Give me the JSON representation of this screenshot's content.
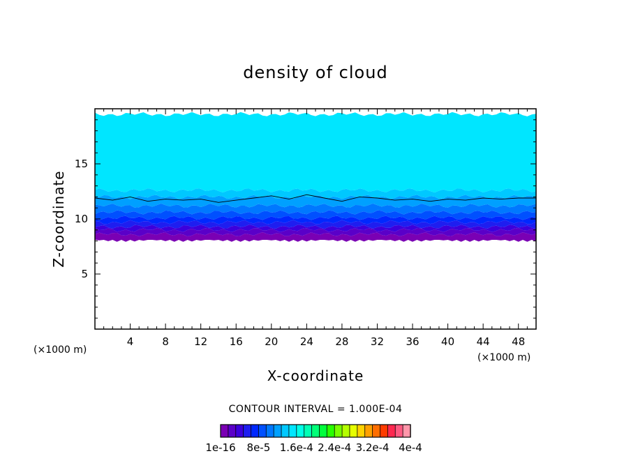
{
  "chart_data": {
    "type": "heatmap",
    "title": "density of cloud",
    "xlabel": "X-coordinate",
    "ylabel": "Z-coordinate",
    "x_unit_label": "(×1000 m)",
    "y_unit_label": "(×1000 m)",
    "xlim": [
      0,
      50
    ],
    "ylim": [
      0,
      20
    ],
    "x_ticks": [
      4,
      8,
      12,
      16,
      20,
      24,
      28,
      32,
      36,
      40,
      44,
      48
    ],
    "y_ticks": [
      5,
      10,
      15
    ],
    "contour_interval_text": "CONTOUR INTERVAL = 1.000E-04",
    "contour_interval": 0.0001,
    "colorbar_labels": [
      "1e-16",
      "8e-5",
      "1.6e-4",
      "2.4e-4",
      "3.2e-4",
      "4e-4"
    ],
    "colorbar_colors": [
      "#7a00b4",
      "#5a00c8",
      "#3c00dc",
      "#1e1ef0",
      "#0028ff",
      "#0050ff",
      "#0078ff",
      "#00a0ff",
      "#00c8ff",
      "#00e6ff",
      "#00ffe6",
      "#00ffb4",
      "#00ff78",
      "#00ff3c",
      "#28ff00",
      "#78ff00",
      "#b4ff00",
      "#e6ff00",
      "#ffd200",
      "#ffa000",
      "#ff6e00",
      "#ff3c00",
      "#ff2850",
      "#ff5a82",
      "#ff96aa"
    ],
    "cloud_layers": [
      {
        "z_bottom": 8.1,
        "z_top": 8.6,
        "color": "#7a00b4"
      },
      {
        "z_bottom": 8.6,
        "z_top": 9.0,
        "color": "#5a00c8"
      },
      {
        "z_bottom": 9.0,
        "z_top": 9.3,
        "color": "#3c00dc"
      },
      {
        "z_bottom": 9.3,
        "z_top": 9.7,
        "color": "#1e1ef0"
      },
      {
        "z_bottom": 9.7,
        "z_top": 10.1,
        "color": "#0028ff"
      },
      {
        "z_bottom": 10.1,
        "z_top": 10.6,
        "color": "#0050ff"
      },
      {
        "z_bottom": 10.6,
        "z_top": 11.2,
        "color": "#0078ff"
      },
      {
        "z_bottom": 11.2,
        "z_top": 12.0,
        "color": "#00a0ff"
      },
      {
        "z_bottom": 12.0,
        "z_top": 12.6,
        "color": "#00c8ff"
      },
      {
        "z_bottom": 12.6,
        "z_top": 19.5,
        "color": "#00e6ff"
      }
    ],
    "contour_line": {
      "x": [
        0,
        2,
        4,
        6,
        8,
        10,
        12,
        14,
        16,
        18,
        20,
        22,
        24,
        26,
        28,
        30,
        32,
        34,
        36,
        38,
        40,
        42,
        44,
        46,
        48,
        50
      ],
      "z": [
        11.9,
        11.7,
        12.0,
        11.6,
        11.8,
        11.7,
        11.8,
        11.5,
        11.7,
        11.9,
        12.1,
        11.8,
        12.2,
        11.9,
        11.6,
        12.0,
        11.9,
        11.7,
        11.8,
        11.6,
        11.8,
        11.7,
        11.9,
        11.8,
        11.9,
        11.9
      ]
    },
    "grid": false,
    "legend": "bottom"
  }
}
